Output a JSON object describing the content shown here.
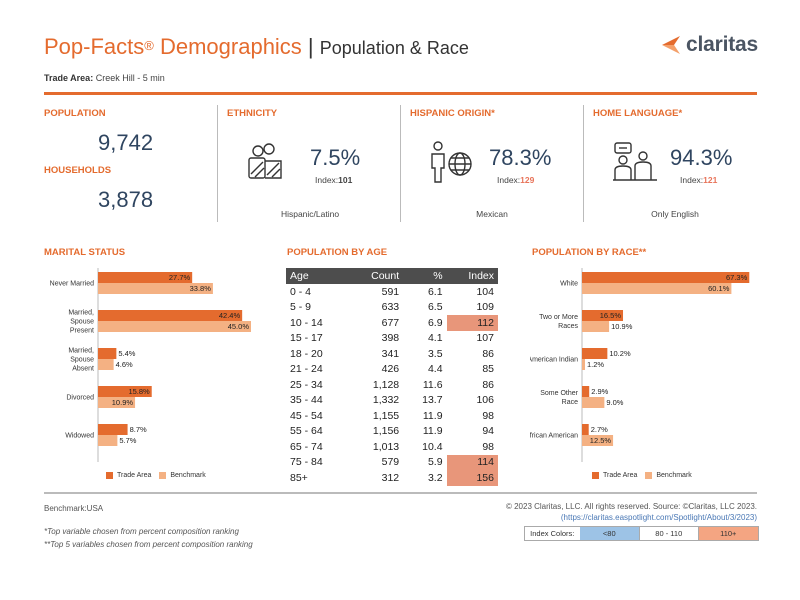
{
  "header": {
    "title": "Pop-Facts",
    "reg": "®",
    "title_rest": " Demographics",
    "separator": " | ",
    "subtitle": "Population & Race",
    "logo": "claritas",
    "trade_area_label": "Trade Area:",
    "trade_area_value": " Creek Hill - 5 min"
  },
  "population": {
    "label": "POPULATION",
    "value": "9,742",
    "households_label": "HOUSEHOLDS",
    "households_value": "3,878"
  },
  "ethnicity": {
    "label": "ETHNICITY",
    "pct": "7.5%",
    "index_label": "Index:",
    "index_value": "101",
    "caption": "Hispanic/Latino",
    "icon": "people-group-icon"
  },
  "hispanic": {
    "label": "HISPANIC ORIGIN*",
    "pct": "78.3%",
    "index_label": "Index:",
    "index_value": "129",
    "caption": "Mexican",
    "icon": "person-globe-icon"
  },
  "language": {
    "label": "HOME LANGUAGE*",
    "pct": "94.3%",
    "index_label": "Index:",
    "index_value": "121",
    "caption": "Only English",
    "icon": "people-conversation-icon"
  },
  "marital": {
    "label": "MARITAL STATUS",
    "chart_data": {
      "type": "bar",
      "orientation": "horizontal",
      "categories": [
        "Never Married",
        "Married, Spouse Present",
        "Married, Spouse Absent",
        "Divorced",
        "Widowed"
      ],
      "series": [
        {
          "name": "Trade Area",
          "values": [
            27.7,
            42.4,
            5.4,
            15.8,
            8.7
          ],
          "labels": [
            "27.7%",
            "42.4%",
            "5.4%",
            "15.8%",
            "8.7%"
          ],
          "color": "#e46b2e"
        },
        {
          "name": "Benchmark",
          "values": [
            33.8,
            45.0,
            4.6,
            10.9,
            5.7
          ],
          "labels": [
            "33.8%",
            "45.0%",
            "4.6%",
            "10.9%",
            "5.7%"
          ],
          "color": "#f4b183"
        }
      ]
    }
  },
  "age": {
    "label": "POPULATION BY AGE",
    "headers": [
      "Age",
      "Count",
      "%",
      "Index"
    ],
    "rows": [
      {
        "age": "0 - 4",
        "count": "591",
        "pct": "6.1",
        "index": "104",
        "hl": false
      },
      {
        "age": "5 - 9",
        "count": "633",
        "pct": "6.5",
        "index": "109",
        "hl": false
      },
      {
        "age": "10 - 14",
        "count": "677",
        "pct": "6.9",
        "index": "112",
        "hl": true
      },
      {
        "age": "15 - 17",
        "count": "398",
        "pct": "4.1",
        "index": "107",
        "hl": false
      },
      {
        "age": "18 - 20",
        "count": "341",
        "pct": "3.5",
        "index": "86",
        "hl": false
      },
      {
        "age": "21 - 24",
        "count": "426",
        "pct": "4.4",
        "index": "85",
        "hl": false
      },
      {
        "age": "25 - 34",
        "count": "1,128",
        "pct": "11.6",
        "index": "86",
        "hl": false
      },
      {
        "age": "35 - 44",
        "count": "1,332",
        "pct": "13.7",
        "index": "106",
        "hl": false
      },
      {
        "age": "45 - 54",
        "count": "1,155",
        "pct": "11.9",
        "index": "98",
        "hl": false
      },
      {
        "age": "55 - 64",
        "count": "1,156",
        "pct": "11.9",
        "index": "94",
        "hl": false
      },
      {
        "age": "65 - 74",
        "count": "1,013",
        "pct": "10.4",
        "index": "98",
        "hl": false
      },
      {
        "age": "75 - 84",
        "count": "579",
        "pct": "5.9",
        "index": "114",
        "hl": true
      },
      {
        "age": "85+",
        "count": "312",
        "pct": "3.2",
        "index": "156",
        "hl": true
      }
    ],
    "highlight_color": "#e8967a"
  },
  "race": {
    "label": "POPULATION BY RACE**",
    "chart_data": {
      "type": "bar",
      "orientation": "horizontal",
      "categories": [
        "White",
        "Two or More Races",
        "American Indian",
        "Some Other Race",
        "African American"
      ],
      "series": [
        {
          "name": "Trade Area",
          "values": [
            67.3,
            16.5,
            10.2,
            2.9,
            2.7
          ],
          "labels": [
            "67.3%",
            "16.5%",
            "10.2%",
            "2.9%",
            "2.7%"
          ],
          "color": "#e46b2e"
        },
        {
          "name": "Benchmark",
          "values": [
            60.1,
            10.9,
            1.2,
            9.0,
            12.5
          ],
          "labels": [
            "60.1%",
            "10.9%",
            "1.2%",
            "9.0%",
            "12.5%"
          ],
          "color": "#f4b183"
        }
      ]
    }
  },
  "legend": {
    "trade_area": "Trade Area",
    "benchmark": "Benchmark"
  },
  "footer": {
    "benchmark": "Benchmark:USA",
    "note1": "*Top variable chosen from percent composition ranking",
    "note2": "**Top 5 variables chosen from percent composition ranking",
    "copyright": "© 2023 Claritas, LLC. All rights reserved. Source: ©Claritas, LLC 2023.",
    "url": "(https://claritas.easpotlight.com/Spotlight/About/3/2023)",
    "index_colors_label": "Index Colors:",
    "index_low": "<80",
    "index_mid": "80 - 110",
    "index_high": "110+",
    "color_low": "#9dc3e6",
    "color_high": "#f4a582"
  }
}
